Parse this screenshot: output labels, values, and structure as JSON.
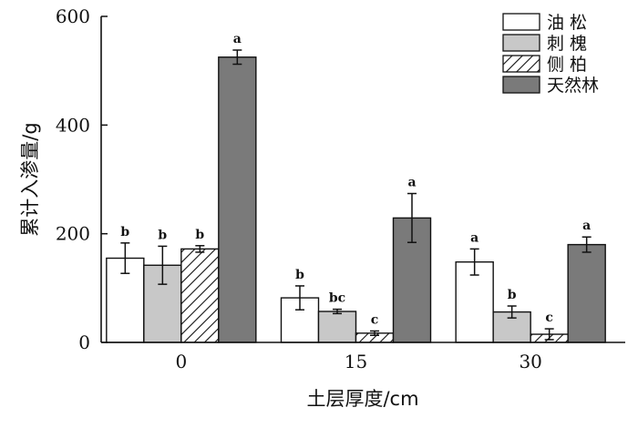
{
  "chart_data": {
    "type": "bar",
    "xlabel": "土层厚度/cm",
    "ylabel": "累计入渗量/g",
    "categories": [
      "0",
      "15",
      "30"
    ],
    "ylim": [
      0,
      600
    ],
    "yticks": [
      "0",
      "200",
      "400",
      "600"
    ],
    "legend_position": "top-right",
    "grid": false,
    "series": [
      {
        "name": "油 松",
        "key": "yousong",
        "fill": "#ffffff",
        "pattern": "none",
        "values": [
          155,
          82,
          148
        ],
        "errors": [
          28,
          22,
          24
        ],
        "letters": [
          "b",
          "b",
          "a"
        ]
      },
      {
        "name": "刺 槐",
        "key": "cihuai",
        "fill": "#c8c8c8",
        "pattern": "none",
        "values": [
          142,
          57,
          56
        ],
        "errors": [
          35,
          4,
          11
        ],
        "letters": [
          "b",
          "bc",
          "b"
        ]
      },
      {
        "name": "侧 柏",
        "key": "cebai",
        "fill": "#ffffff",
        "pattern": "hatch",
        "values": [
          172,
          17,
          15
        ],
        "errors": [
          6,
          4,
          10
        ],
        "letters": [
          "b",
          "c",
          "c"
        ]
      },
      {
        "name": "天然林",
        "key": "tianranlin",
        "fill": "#7a7a7a",
        "pattern": "none",
        "values": [
          525,
          229,
          180
        ],
        "errors": [
          13,
          45,
          14
        ],
        "letters": [
          "a",
          "a",
          "a"
        ]
      }
    ]
  }
}
